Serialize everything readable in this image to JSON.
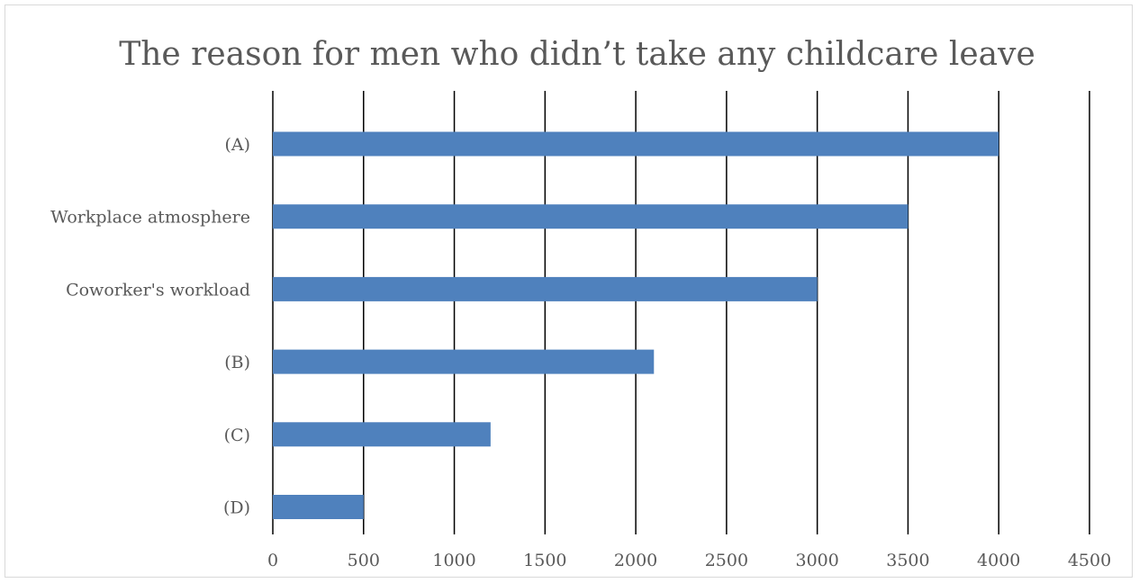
{
  "chart_data": {
    "type": "bar",
    "orientation": "horizontal",
    "title": "The reason for men who didn’t take any childcare leave",
    "categories": [
      "(A)",
      "Workplace atmosphere",
      "Coworker's workload",
      "(B)",
      "(C)",
      "(D)"
    ],
    "values": [
      4000,
      3500,
      3000,
      2100,
      1200,
      500
    ],
    "xlim": [
      0,
      4500
    ],
    "x_ticks": [
      "0",
      "500",
      "1000",
      "1500",
      "2000",
      "2500",
      "3000",
      "3500",
      "4000",
      "4500"
    ],
    "grid": "vertical",
    "legend": "none",
    "bar_color": "#4f81bd",
    "grid_color": "#000000",
    "text_color": "#595959"
  }
}
